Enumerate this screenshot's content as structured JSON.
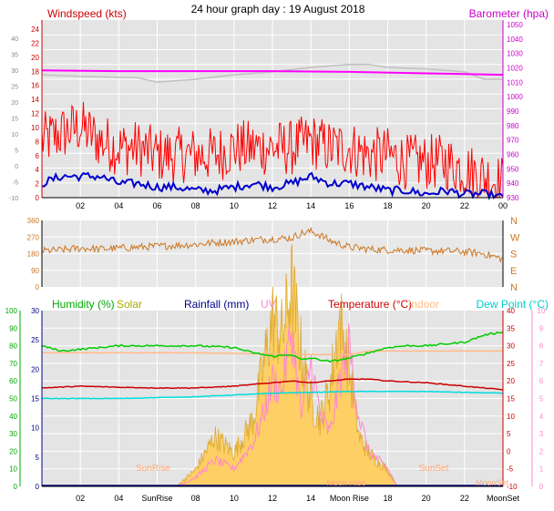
{
  "page_title": "24 hour graph day : 19 August 2018",
  "colors": {
    "windspeed": "#ff0000",
    "windavg": "#0000cc",
    "barometer": "#ff00ff",
    "barometer_hist": "#c0c0c0",
    "direction": "#cc7722",
    "humidity": "#00cc00",
    "solar": "#cccc00",
    "rainfall": "#000088",
    "uv": "#ff88cc",
    "temperature": "#cc0000",
    "indoor": "#ffbb88",
    "dewpoint": "#00dddd",
    "solar_fill": "#ffcc55"
  },
  "chart_data": [
    {
      "type": "line",
      "panel": "wind-barometer",
      "left_title": "Windspeed (kts)",
      "right_title": "Barometer (hpa)",
      "x_ticks": [
        "02",
        "04",
        "06",
        "08",
        "10",
        "12",
        "14",
        "16",
        "18",
        "20",
        "22",
        "00"
      ],
      "outer_left_ticks": [
        "40",
        "35",
        "30",
        "25",
        "20",
        "15",
        "10",
        "5",
        "0",
        "-5",
        "-10"
      ],
      "left_ticks": [
        "24",
        "22",
        "20",
        "18",
        "16",
        "14",
        "12",
        "10",
        "8",
        "6",
        "4",
        "2",
        "0"
      ],
      "right_ticks": [
        "1050",
        "1040",
        "1030",
        "1020",
        "1010",
        "1000",
        "990",
        "980",
        "970",
        "960",
        "950",
        "940",
        "930"
      ],
      "ylim_left": [
        0,
        25
      ],
      "ylim_right": [
        930,
        1050
      ],
      "grid": true,
      "series": [
        {
          "name": "Windspeed",
          "key": "gust",
          "x": [
            0,
            1,
            2,
            3,
            4,
            5,
            6,
            7,
            8,
            9,
            10,
            11,
            12,
            13,
            14,
            15,
            16,
            17,
            18,
            19,
            20,
            21,
            22,
            23,
            24
          ],
          "values": [
            8,
            9,
            10,
            8,
            7,
            7,
            6,
            6,
            6,
            6,
            7,
            7,
            7,
            7,
            8,
            7,
            7,
            6,
            6,
            5,
            5,
            5,
            4,
            3,
            2
          ]
        },
        {
          "name": "",
          "key": "avg",
          "x": [
            0,
            1,
            2,
            3,
            4,
            5,
            6,
            7,
            8,
            9,
            10,
            11,
            12,
            13,
            14,
            15,
            16,
            17,
            18,
            19,
            20,
            21,
            22,
            23,
            24
          ],
          "values": [
            2,
            3,
            3,
            3,
            2,
            2,
            1.5,
            1.5,
            1,
            1,
            1.5,
            2,
            1.5,
            2,
            3,
            2,
            2,
            1.5,
            1,
            1,
            0.5,
            1,
            0.5,
            0.5,
            0
          ]
        },
        {
          "name": "Barometer",
          "key": "pressure",
          "x": [
            0,
            4,
            8,
            12,
            16,
            20,
            24
          ],
          "values": [
            1016,
            1015.5,
            1015.5,
            1015.5,
            1015,
            1014,
            1013
          ]
        },
        {
          "name": "",
          "key": "pressure_hist",
          "x": [
            0,
            2,
            5,
            6,
            8,
            10,
            12,
            14,
            16,
            17,
            18,
            20,
            22,
            23,
            24
          ],
          "values": [
            1013,
            1012,
            1011,
            1008,
            1010,
            1013,
            1015,
            1018,
            1020,
            1020,
            1018,
            1017,
            1015,
            1010,
            1010
          ]
        }
      ]
    },
    {
      "type": "scatter",
      "panel": "wind-direction",
      "y_ticks": [
        "360",
        "270",
        "180",
        "90",
        "0"
      ],
      "compass": [
        "N",
        "W",
        "S",
        "E",
        "N"
      ],
      "ylim": [
        0,
        360
      ],
      "grid": true,
      "series": [
        {
          "name": "",
          "key": "direction",
          "x": [
            0,
            1,
            2,
            3,
            4,
            5,
            6,
            7,
            8,
            9,
            10,
            11,
            12,
            13,
            13.5,
            14,
            14.5,
            15,
            16,
            17,
            18,
            19,
            20,
            21,
            22,
            22.5,
            23,
            24
          ],
          "values": [
            195,
            200,
            210,
            205,
            210,
            215,
            220,
            225,
            230,
            240,
            245,
            255,
            260,
            265,
            290,
            300,
            280,
            250,
            215,
            205,
            200,
            200,
            195,
            195,
            190,
            185,
            180,
            150
          ]
        }
      ]
    },
    {
      "type": "line",
      "panel": "temp-humidity",
      "legend": [
        "Humidity (%)",
        "Solar",
        "Rainfall (mm)",
        "UV",
        "Temperature (°C)",
        "Indoor",
        "Dew Point (°C)"
      ],
      "x_ticks": [
        "02",
        "04",
        "SunRise",
        "08",
        "10",
        "12",
        "14",
        "Moon Rise",
        "18",
        "20",
        "22",
        "MoonSet"
      ],
      "annotations": [
        "SunRise",
        "SunSet",
        "Moon Rise",
        "MoonSet"
      ],
      "humidity_ticks": [
        "100",
        "90",
        "80",
        "70",
        "60",
        "50",
        "40",
        "30",
        "20",
        "10",
        "0"
      ],
      "rain_ticks": [
        "30",
        "25",
        "20",
        "15",
        "10",
        "5",
        "0"
      ],
      "temp_ticks": [
        "40",
        "35",
        "30",
        "25",
        "20",
        "15",
        "10",
        "5",
        "0",
        "-5",
        "-10"
      ],
      "uv_ticks": [
        "10",
        "9",
        "8",
        "7",
        "6",
        "5",
        "4",
        "3",
        "2",
        "1",
        "0"
      ],
      "ylim_temp": [
        -10,
        40
      ],
      "ylim_humidity": [
        0,
        100
      ],
      "ylim_uv": [
        0,
        10
      ],
      "grid": true,
      "series": [
        {
          "name": "Humidity (%)",
          "key": "humidity",
          "x": [
            0,
            1,
            2,
            4,
            6,
            8,
            10,
            11,
            12,
            13,
            13.5,
            14,
            15,
            16,
            17,
            18,
            19,
            20,
            21,
            22,
            23,
            24
          ],
          "values": [
            80,
            77,
            78,
            80,
            80,
            80,
            79,
            76,
            74,
            75,
            72,
            73,
            71,
            73,
            76,
            79,
            80,
            80,
            81,
            82,
            86,
            88
          ]
        },
        {
          "name": "Temperature (°C)",
          "key": "temperature",
          "x": [
            0,
            2,
            4,
            6,
            8,
            10,
            11,
            12,
            13,
            14,
            15,
            16,
            17,
            18,
            20,
            22,
            24
          ],
          "values": [
            18,
            18.5,
            18.2,
            18,
            18,
            18.5,
            19,
            19.5,
            20,
            19.5,
            20,
            20.5,
            20.5,
            20,
            19.5,
            18.5,
            17.5
          ]
        },
        {
          "name": "Indoor",
          "key": "indoor",
          "x": [
            0,
            8,
            14,
            16,
            17,
            20,
            24
          ],
          "values": [
            28,
            28,
            27.5,
            27.5,
            28.5,
            28.5,
            28.5
          ]
        },
        {
          "name": "Dew Point (°C)",
          "key": "dewpoint",
          "x": [
            0,
            4,
            8,
            12,
            16,
            20,
            24
          ],
          "values": [
            15,
            15,
            15.5,
            16.5,
            17,
            17,
            16.5
          ]
        },
        {
          "name": "Solar",
          "key": "solar",
          "x": [
            7,
            8,
            9,
            10,
            11,
            11.5,
            12,
            12.5,
            13,
            13.5,
            14,
            14.5,
            15,
            15.5,
            16,
            16.5,
            17,
            18,
            18.5
          ],
          "values": [
            0,
            1,
            3,
            2,
            4,
            7,
            10,
            9,
            12,
            8,
            5,
            4,
            6,
            10,
            7,
            3,
            2,
            1,
            0
          ]
        },
        {
          "name": "UV",
          "key": "uv",
          "x": [
            7,
            8,
            9,
            10,
            11,
            11.5,
            12,
            12.5,
            13,
            13.5,
            14,
            14.5,
            15,
            15.5,
            16,
            16.5,
            17,
            18,
            18.5
          ],
          "values": [
            0,
            0.5,
            1.5,
            1,
            2.5,
            4,
            6,
            5.5,
            9,
            4,
            7,
            4,
            3,
            6,
            8,
            4,
            2,
            1,
            0
          ]
        }
      ]
    }
  ]
}
